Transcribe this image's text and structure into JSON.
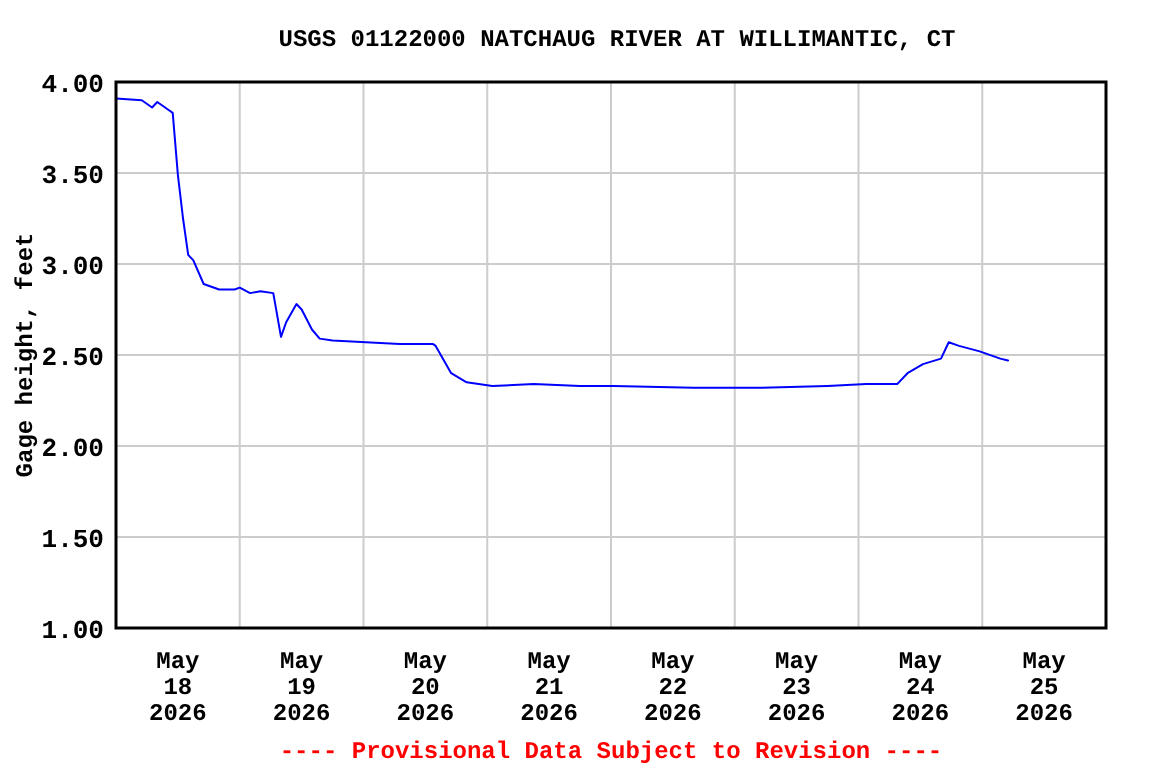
{
  "chart_data": {
    "type": "line",
    "title": "USGS 01122000 NATCHAUG RIVER AT WILLIMANTIC, CT",
    "ylabel": "Gage height, feet",
    "annotations": [
      "---- Provisional Data Subject to Revision ----"
    ],
    "x": [
      "2026-05-18T00:00",
      "2026-05-18T05:00",
      "2026-05-18T07:00",
      "2026-05-18T08:00",
      "2026-05-18T10:00",
      "2026-05-18T11:00",
      "2026-05-18T12:00",
      "2026-05-18T13:00",
      "2026-05-18T14:00",
      "2026-05-18T15:00",
      "2026-05-18T17:00",
      "2026-05-18T20:00",
      "2026-05-18T23:00",
      "2026-05-19T00:00",
      "2026-05-19T02:00",
      "2026-05-19T04:00",
      "2026-05-19T06:30",
      "2026-05-19T08:00",
      "2026-05-19T09:00",
      "2026-05-19T11:00",
      "2026-05-19T12:00",
      "2026-05-19T14:00",
      "2026-05-19T15:30",
      "2026-05-19T18:00",
      "2026-05-20T00:30",
      "2026-05-20T07:00",
      "2026-05-20T13:30",
      "2026-05-20T14:00",
      "2026-05-20T17:00",
      "2026-05-20T20:00",
      "2026-05-21T01:00",
      "2026-05-21T09:00",
      "2026-05-21T18:00",
      "2026-05-22T00:30",
      "2026-05-22T16:00",
      "2026-05-23T05:00",
      "2026-05-23T18:00",
      "2026-05-24T01:30",
      "2026-05-24T07:30",
      "2026-05-24T09:30",
      "2026-05-24T12:30",
      "2026-05-24T16:00",
      "2026-05-24T17:30",
      "2026-05-24T19:30",
      "2026-05-24T23:30",
      "2026-05-25T03:30",
      "2026-05-25T05:00"
    ],
    "series": [
      {
        "color": "#0000ff",
        "values": [
          3.91,
          3.9,
          3.86,
          3.89,
          3.85,
          3.83,
          3.49,
          3.25,
          3.05,
          3.02,
          2.89,
          2.86,
          2.86,
          2.87,
          2.84,
          2.85,
          2.84,
          2.6,
          2.68,
          2.78,
          2.75,
          2.64,
          2.59,
          2.58,
          2.57,
          2.56,
          2.56,
          2.55,
          2.4,
          2.35,
          2.33,
          2.34,
          2.33,
          2.33,
          2.32,
          2.32,
          2.33,
          2.34,
          2.34,
          2.4,
          2.45,
          2.48,
          2.57,
          2.55,
          2.52,
          2.48,
          2.47
        ]
      }
    ],
    "xlim": [
      "2026-05-18T00:00",
      "2026-05-26T00:00"
    ],
    "xticks": [
      {
        "value": "2026-05-18T12:00",
        "label": "May\n18\n2026"
      },
      {
        "value": "2026-05-19T00:00",
        "label": null
      },
      {
        "value": "2026-05-19T12:00",
        "label": "May\n19\n2026"
      },
      {
        "value": "2026-05-20T00:00",
        "label": null
      },
      {
        "value": "2026-05-20T12:00",
        "label": "May\n20\n2026"
      },
      {
        "value": "2026-05-21T00:00",
        "label": null
      },
      {
        "value": "2026-05-21T12:00",
        "label": "May\n21\n2026"
      },
      {
        "value": "2026-05-22T00:00",
        "label": null
      },
      {
        "value": "2026-05-22T12:00",
        "label": "May\n22\n2026"
      },
      {
        "value": "2026-05-23T00:00",
        "label": null
      },
      {
        "value": "2026-05-23T12:00",
        "label": "May\n23\n2026"
      },
      {
        "value": "2026-05-24T00:00",
        "label": null
      },
      {
        "value": "2026-05-24T12:00",
        "label": "May\n24\n2026"
      },
      {
        "value": "2026-05-25T00:00",
        "label": null
      },
      {
        "value": "2026-05-25T12:00",
        "label": "May\n25\n2026"
      }
    ],
    "ylim": [
      1,
      4
    ],
    "yticks": [
      {
        "value": 1,
        "label": "1.00"
      },
      {
        "value": 1.5,
        "label": "1.50"
      },
      {
        "value": 2,
        "label": "2.00"
      },
      {
        "value": 2.5,
        "label": "2.50"
      },
      {
        "value": 3,
        "label": "3.00"
      },
      {
        "value": 3.5,
        "label": "3.50"
      },
      {
        "value": 4,
        "label": "4.00"
      }
    ],
    "grid": true,
    "line_style": "solid",
    "marker": "none"
  }
}
